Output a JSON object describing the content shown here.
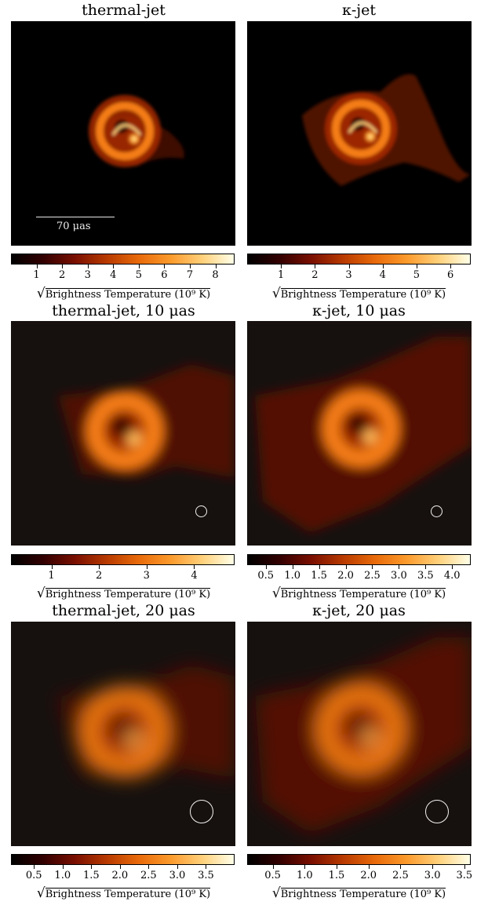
{
  "panels": [
    {
      "title": "thermal-jet",
      "blur": "sharp",
      "style": "thermal",
      "beam": null,
      "scalebar": "70 μas"
    },
    {
      "title": "κ-jet",
      "blur": "sharp",
      "style": "kappa",
      "beam": null,
      "scalebar": null
    },
    {
      "title": "thermal-jet, 10 μas",
      "blur": "10",
      "style": "thermal",
      "beam": "small",
      "scalebar": null
    },
    {
      "title": "κ-jet, 10 μas",
      "blur": "10",
      "style": "kappa",
      "beam": "small",
      "scalebar": null
    },
    {
      "title": "thermal-jet, 20 μas",
      "blur": "20",
      "style": "thermal",
      "beam": "large",
      "scalebar": null
    },
    {
      "title": "κ-jet, 20 μas",
      "blur": "20",
      "style": "kappa",
      "beam": "large",
      "scalebar": null
    }
  ],
  "colorbars": [
    {
      "min": 0,
      "max": 8.75,
      "ticks": [
        1,
        2,
        3,
        4,
        5,
        6,
        7,
        8
      ],
      "labels": [
        "1",
        "2",
        "3",
        "4",
        "5",
        "6",
        "7",
        "8"
      ]
    },
    {
      "min": 0,
      "max": 6.6,
      "ticks": [
        1,
        2,
        3,
        4,
        5,
        6
      ],
      "labels": [
        "1",
        "2",
        "3",
        "4",
        "5",
        "6"
      ]
    },
    {
      "min": 0.15,
      "max": 4.85,
      "ticks": [
        1,
        2,
        3,
        4
      ],
      "labels": [
        "1",
        "2",
        "3",
        "4"
      ]
    },
    {
      "min": 0.15,
      "max": 4.35,
      "ticks": [
        0.5,
        1.0,
        1.5,
        2.0,
        2.5,
        3.0,
        3.5,
        4.0
      ],
      "labels": [
        "0.5",
        "1.0",
        "1.5",
        "2.0",
        "2.5",
        "3.0",
        "3.5",
        "4.0"
      ]
    },
    {
      "min": 0.1,
      "max": 4.0,
      "ticks": [
        0.5,
        1.0,
        1.5,
        2.0,
        2.5,
        3.0,
        3.5
      ],
      "labels": [
        "0.5",
        "1.0",
        "1.5",
        "2.0",
        "2.5",
        "3.0",
        "3.5"
      ]
    },
    {
      "min": 0.1,
      "max": 3.6,
      "ticks": [
        0.5,
        1.0,
        1.5,
        2.0,
        2.5,
        3.0,
        3.5
      ],
      "labels": [
        "0.5",
        "1.0",
        "1.5",
        "2.0",
        "2.5",
        "3.0",
        "3.5"
      ]
    }
  ],
  "colorbar_label": "Brightness Temperature (10⁹ K)",
  "colormap": [
    "#000000",
    "#330000",
    "#7a0f00",
    "#b83a00",
    "#e86a0a",
    "#fb9a2c",
    "#ffd07a",
    "#ffffe8"
  ]
}
